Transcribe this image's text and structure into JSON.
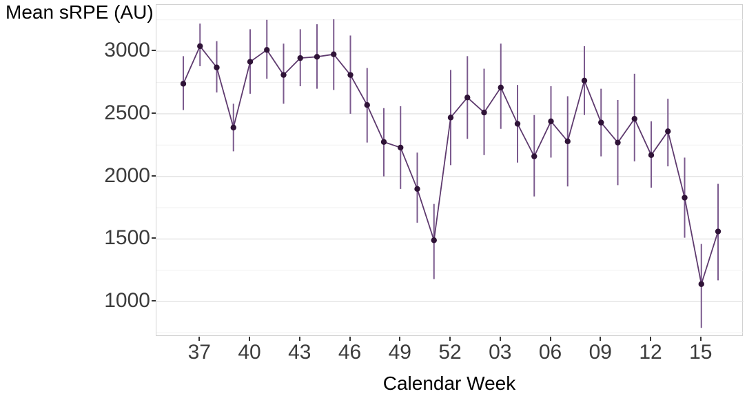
{
  "figure": {
    "y_axis_title": "Mean sRPE (AU)",
    "x_axis_title": "Calendar Week"
  },
  "chart_data": {
    "type": "line",
    "title": "",
    "xlabel": "Calendar Week",
    "ylabel": "Mean sRPE (AU)",
    "categories": [
      "36",
      "37",
      "38",
      "39",
      "40",
      "41",
      "42",
      "43",
      "44",
      "45",
      "46",
      "47",
      "48",
      "49",
      "50",
      "51",
      "52",
      "01",
      "02",
      "03",
      "04",
      "05",
      "06",
      "07",
      "08",
      "09",
      "10",
      "11",
      "12",
      "13",
      "14",
      "15",
      "16"
    ],
    "series": [
      {
        "name": "Mean sRPE",
        "values": [
          2740,
          3040,
          2870,
          2390,
          2915,
          3010,
          2810,
          2945,
          2955,
          2975,
          2810,
          2570,
          2275,
          2230,
          1900,
          1490,
          2470,
          2630,
          2510,
          2710,
          2420,
          2160,
          2440,
          2280,
          2765,
          2430,
          2270,
          2460,
          2170,
          2360,
          1830,
          1140,
          1560
        ],
        "ci_lower": [
          2530,
          2880,
          2670,
          2200,
          2660,
          2780,
          2580,
          2720,
          2700,
          2690,
          2500,
          2270,
          2000,
          1900,
          1630,
          1180,
          2090,
          2300,
          2170,
          2380,
          2110,
          1840,
          2150,
          1920,
          2490,
          2160,
          1930,
          2120,
          1910,
          2080,
          1510,
          790,
          1170
        ],
        "ci_upper": [
          2960,
          3220,
          3080,
          2580,
          3175,
          3250,
          3060,
          3175,
          3215,
          3255,
          3125,
          2865,
          2545,
          2560,
          2190,
          1780,
          2850,
          2960,
          2860,
          3060,
          2730,
          2490,
          2720,
          2640,
          3040,
          2700,
          2610,
          2820,
          2440,
          2620,
          2150,
          1460,
          1940
        ]
      }
    ],
    "x_tick_labels": [
      "37",
      "40",
      "43",
      "46",
      "49",
      "52",
      "03",
      "06",
      "09",
      "12",
      "15"
    ],
    "x_tick_first_index": 1,
    "x_tick_step": 3,
    "y_ticks": [
      1000,
      1500,
      2000,
      2500,
      3000
    ],
    "y_minor_ticks": [
      750,
      1250,
      1750,
      2250,
      2750,
      3250
    ],
    "ylim": [
      720,
      3370
    ],
    "grid": "major+minor",
    "legend": "none",
    "error_bars": "vertical-no-caps",
    "colors": {
      "line": "#5e3a6e",
      "point": "#2f1337",
      "error_bar": "#7b5a8e",
      "grid_major": "#e3e3e3",
      "grid_minor": "#f1f1f1",
      "panel_border": "#d2d2d2",
      "tick_text": "#3c3c3c",
      "tick_mark": "#333333",
      "background": "#ffffff"
    }
  }
}
